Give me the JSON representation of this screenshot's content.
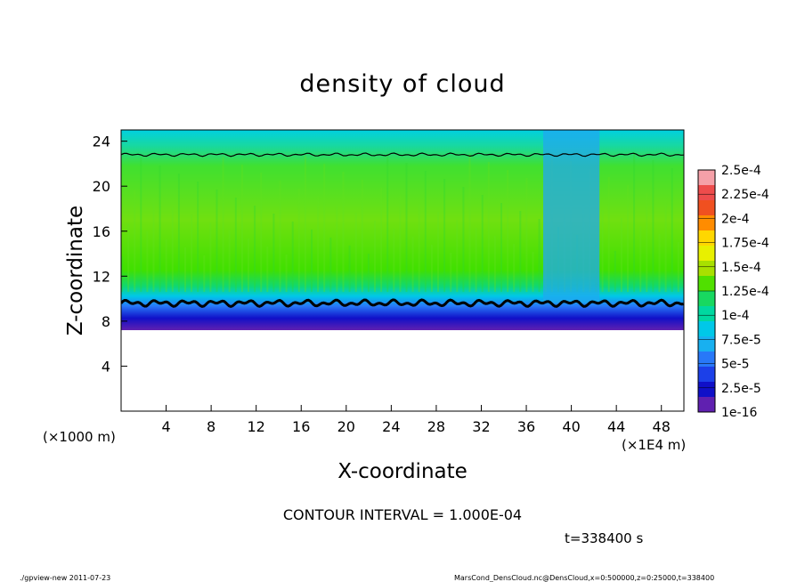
{
  "chart_data": {
    "type": "heatmap",
    "title": "density of cloud",
    "xlabel": "X-coordinate",
    "ylabel": "Z-coordinate",
    "x_unit_left": "(×1000 m)",
    "x_unit_right": "(×1E4 m)",
    "xlim": [
      0,
      50
    ],
    "ylim": [
      0,
      25
    ],
    "x_ticks": [
      4,
      8,
      12,
      16,
      20,
      24,
      28,
      32,
      36,
      40,
      44,
      48
    ],
    "y_ticks": [
      4,
      8,
      12,
      16,
      20,
      24
    ],
    "colorbar_labels": [
      "2.5e-4",
      "2.25e-4",
      "2e-4",
      "1.75e-4",
      "1.5e-4",
      "1.25e-4",
      "1e-4",
      "7.5e-5",
      "5e-5",
      "2.5e-5",
      "1e-16"
    ],
    "colorbar_colors": [
      "#f5a0a8",
      "#ee4c4c",
      "#f05020",
      "#ff8c00",
      "#ffd700",
      "#e8f000",
      "#a8e000",
      "#50e000",
      "#18d860",
      "#00d8a0",
      "#00c8e8",
      "#18b0f0",
      "#2878f8",
      "#1c40e8",
      "#1010c8",
      "#6020b0"
    ],
    "contour_interval": "CONTOUR INTERVAL = 1.000E-04",
    "time_label": "t=338400 s",
    "cloud_base_z": 7.2,
    "cloud_top_z": 23.5,
    "contour_lower_z": 9.6,
    "contour_upper_z": 22.8,
    "disturbance_x": [
      37.5,
      42.5
    ]
  },
  "footer": {
    "left": "./gpview-new  2011-07-23",
    "right": "MarsCond_DensCloud.nc@DensCloud,x=0:500000,z=0:25000,t=338400"
  }
}
